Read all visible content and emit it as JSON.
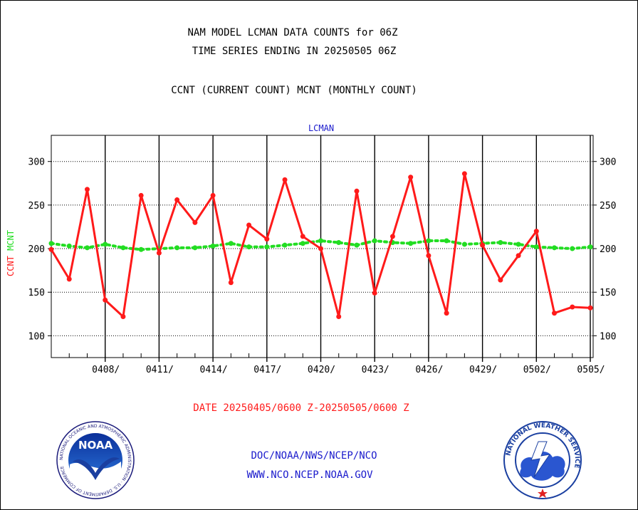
{
  "header": {
    "title_line1": "NAM MODEL LCMAN DATA COUNTS for 06Z",
    "title_line2": "TIME SERIES ENDING IN 20250505 06Z",
    "subtitle": "CCNT (CURRENT COUNT) MCNT (MONTHLY COUNT)"
  },
  "footer": {
    "date_range": "DATE 20250405/0600 Z-20250505/0600 Z",
    "org_line": "DOC/NOAA/NWS/NCEP/NCO",
    "url_line": "WWW.NCO.NCEP.NOAA.GOV"
  },
  "logos": {
    "noaa": {
      "name": "NOAA",
      "ring_text": "NATIONAL OCEANIC AND ATMOSPHERIC ADMINISTRATION · U.S. DEPARTMENT OF COMMERCE"
    },
    "nws": {
      "ring_text": "NATIONAL WEATHER SERVICE"
    }
  },
  "colors": {
    "ccnt": "#ff1a1a",
    "mcnt": "#22dd22",
    "label_blue": "#1a1acc",
    "axis": "#000000"
  },
  "chart_data": {
    "type": "line",
    "title": "LCMAN",
    "ylabel_left": [
      "CCNT",
      "MCNT"
    ],
    "ylim": [
      75,
      330
    ],
    "yticks": [
      100,
      150,
      200,
      250,
      300
    ],
    "xlim": [
      0,
      30
    ],
    "xticks": [
      {
        "day": 3,
        "label": "0408/"
      },
      {
        "day": 6,
        "label": "0411/"
      },
      {
        "day": 9,
        "label": "0414/"
      },
      {
        "day": 12,
        "label": "0417/"
      },
      {
        "day": 15,
        "label": "0420/"
      },
      {
        "day": 18,
        "label": "0423/"
      },
      {
        "day": 21,
        "label": "0426/"
      },
      {
        "day": 24,
        "label": "0429/"
      },
      {
        "day": 27,
        "label": "0502/"
      },
      {
        "day": 30,
        "label": "0505/"
      }
    ],
    "grid": true,
    "series": [
      {
        "name": "CCNT",
        "color": "#ff1a1a",
        "style": "solid",
        "values": [
          199,
          165,
          268,
          141,
          122,
          261,
          195,
          256,
          230,
          261,
          161,
          227,
          211,
          279,
          214,
          200,
          122,
          266,
          149,
          214,
          282,
          192,
          126,
          286,
          204,
          164,
          192,
          220,
          126,
          133,
          132
        ]
      },
      {
        "name": "MCNT",
        "color": "#22dd22",
        "style": "dotted",
        "values": [
          206,
          203,
          201,
          205,
          201,
          199,
          200,
          201,
          201,
          203,
          206,
          202,
          202,
          204,
          206,
          209,
          207,
          204,
          209,
          207,
          206,
          209,
          209,
          205,
          206,
          207,
          205,
          202,
          201,
          200,
          202
        ]
      }
    ]
  }
}
